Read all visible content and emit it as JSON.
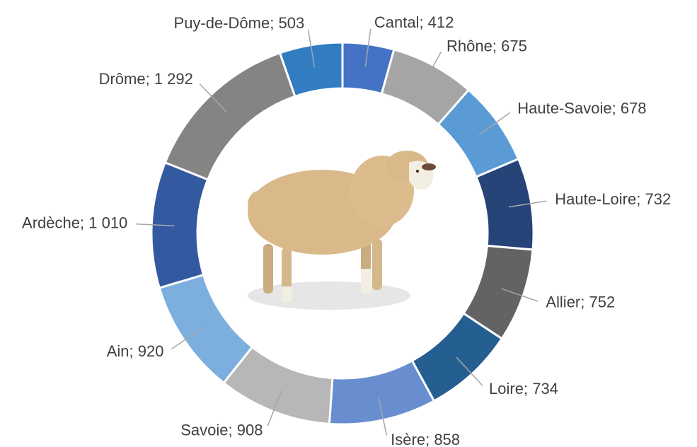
{
  "chart_data": {
    "type": "donut",
    "categories": [
      "Cantal",
      "Rhône",
      "Haute-Savoie",
      "Haute-Loire",
      "Allier",
      "Loire",
      "Isère",
      "Savoie",
      "Ain",
      "Ardèche",
      "Drôme",
      "Puy-de-Dôme"
    ],
    "values": [
      412,
      675,
      678,
      732,
      752,
      734,
      858,
      908,
      920,
      1010,
      1292,
      503
    ],
    "value_labels": [
      "412",
      "675",
      "678",
      "732",
      "752",
      "734",
      "858",
      "908",
      "920",
      "1 010",
      "1 292",
      "503"
    ],
    "label_separator": "; ",
    "colors": [
      "#4472c4",
      "#a5a5a5",
      "#5b9bd5",
      "#264478",
      "#636363",
      "#255e91",
      "#698ed0",
      "#b7b7b7",
      "#7cafdd",
      "#335aa1",
      "#848484",
      "#327dc2"
    ]
  }
}
